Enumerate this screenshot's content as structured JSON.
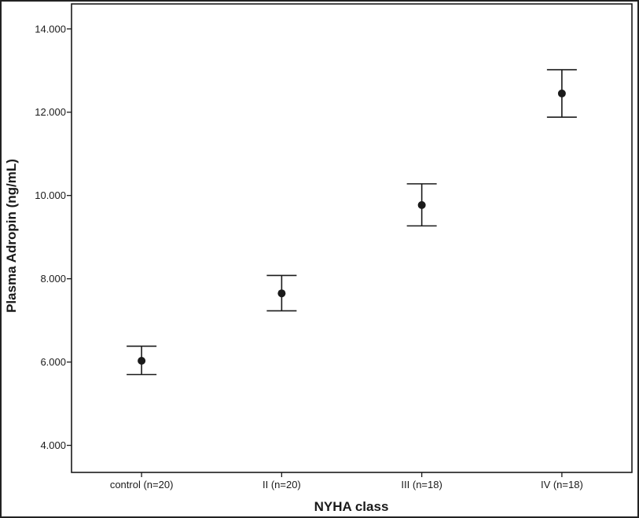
{
  "chart_data": {
    "type": "scatter",
    "xlabel": "NYHA class",
    "ylabel": "Plasma Adropin (ng/mL)",
    "categories": [
      "control (n=20)",
      "II (n=20)",
      "III (n=18)",
      "IV (n=18)"
    ],
    "yticks": [
      "4.000",
      "6.000",
      "8.000",
      "10.000",
      "12.000",
      "14.000"
    ],
    "ytick_values": [
      4,
      6,
      8,
      10,
      12,
      14
    ],
    "ylim": [
      3.35,
      14.6
    ],
    "series": [
      {
        "values": [
          6.03,
          7.65,
          9.77,
          12.45
        ],
        "lower": [
          5.7,
          7.23,
          9.27,
          11.88
        ],
        "upper": [
          6.38,
          8.08,
          10.28,
          13.02
        ]
      }
    ],
    "grid": false,
    "legend": "none"
  }
}
